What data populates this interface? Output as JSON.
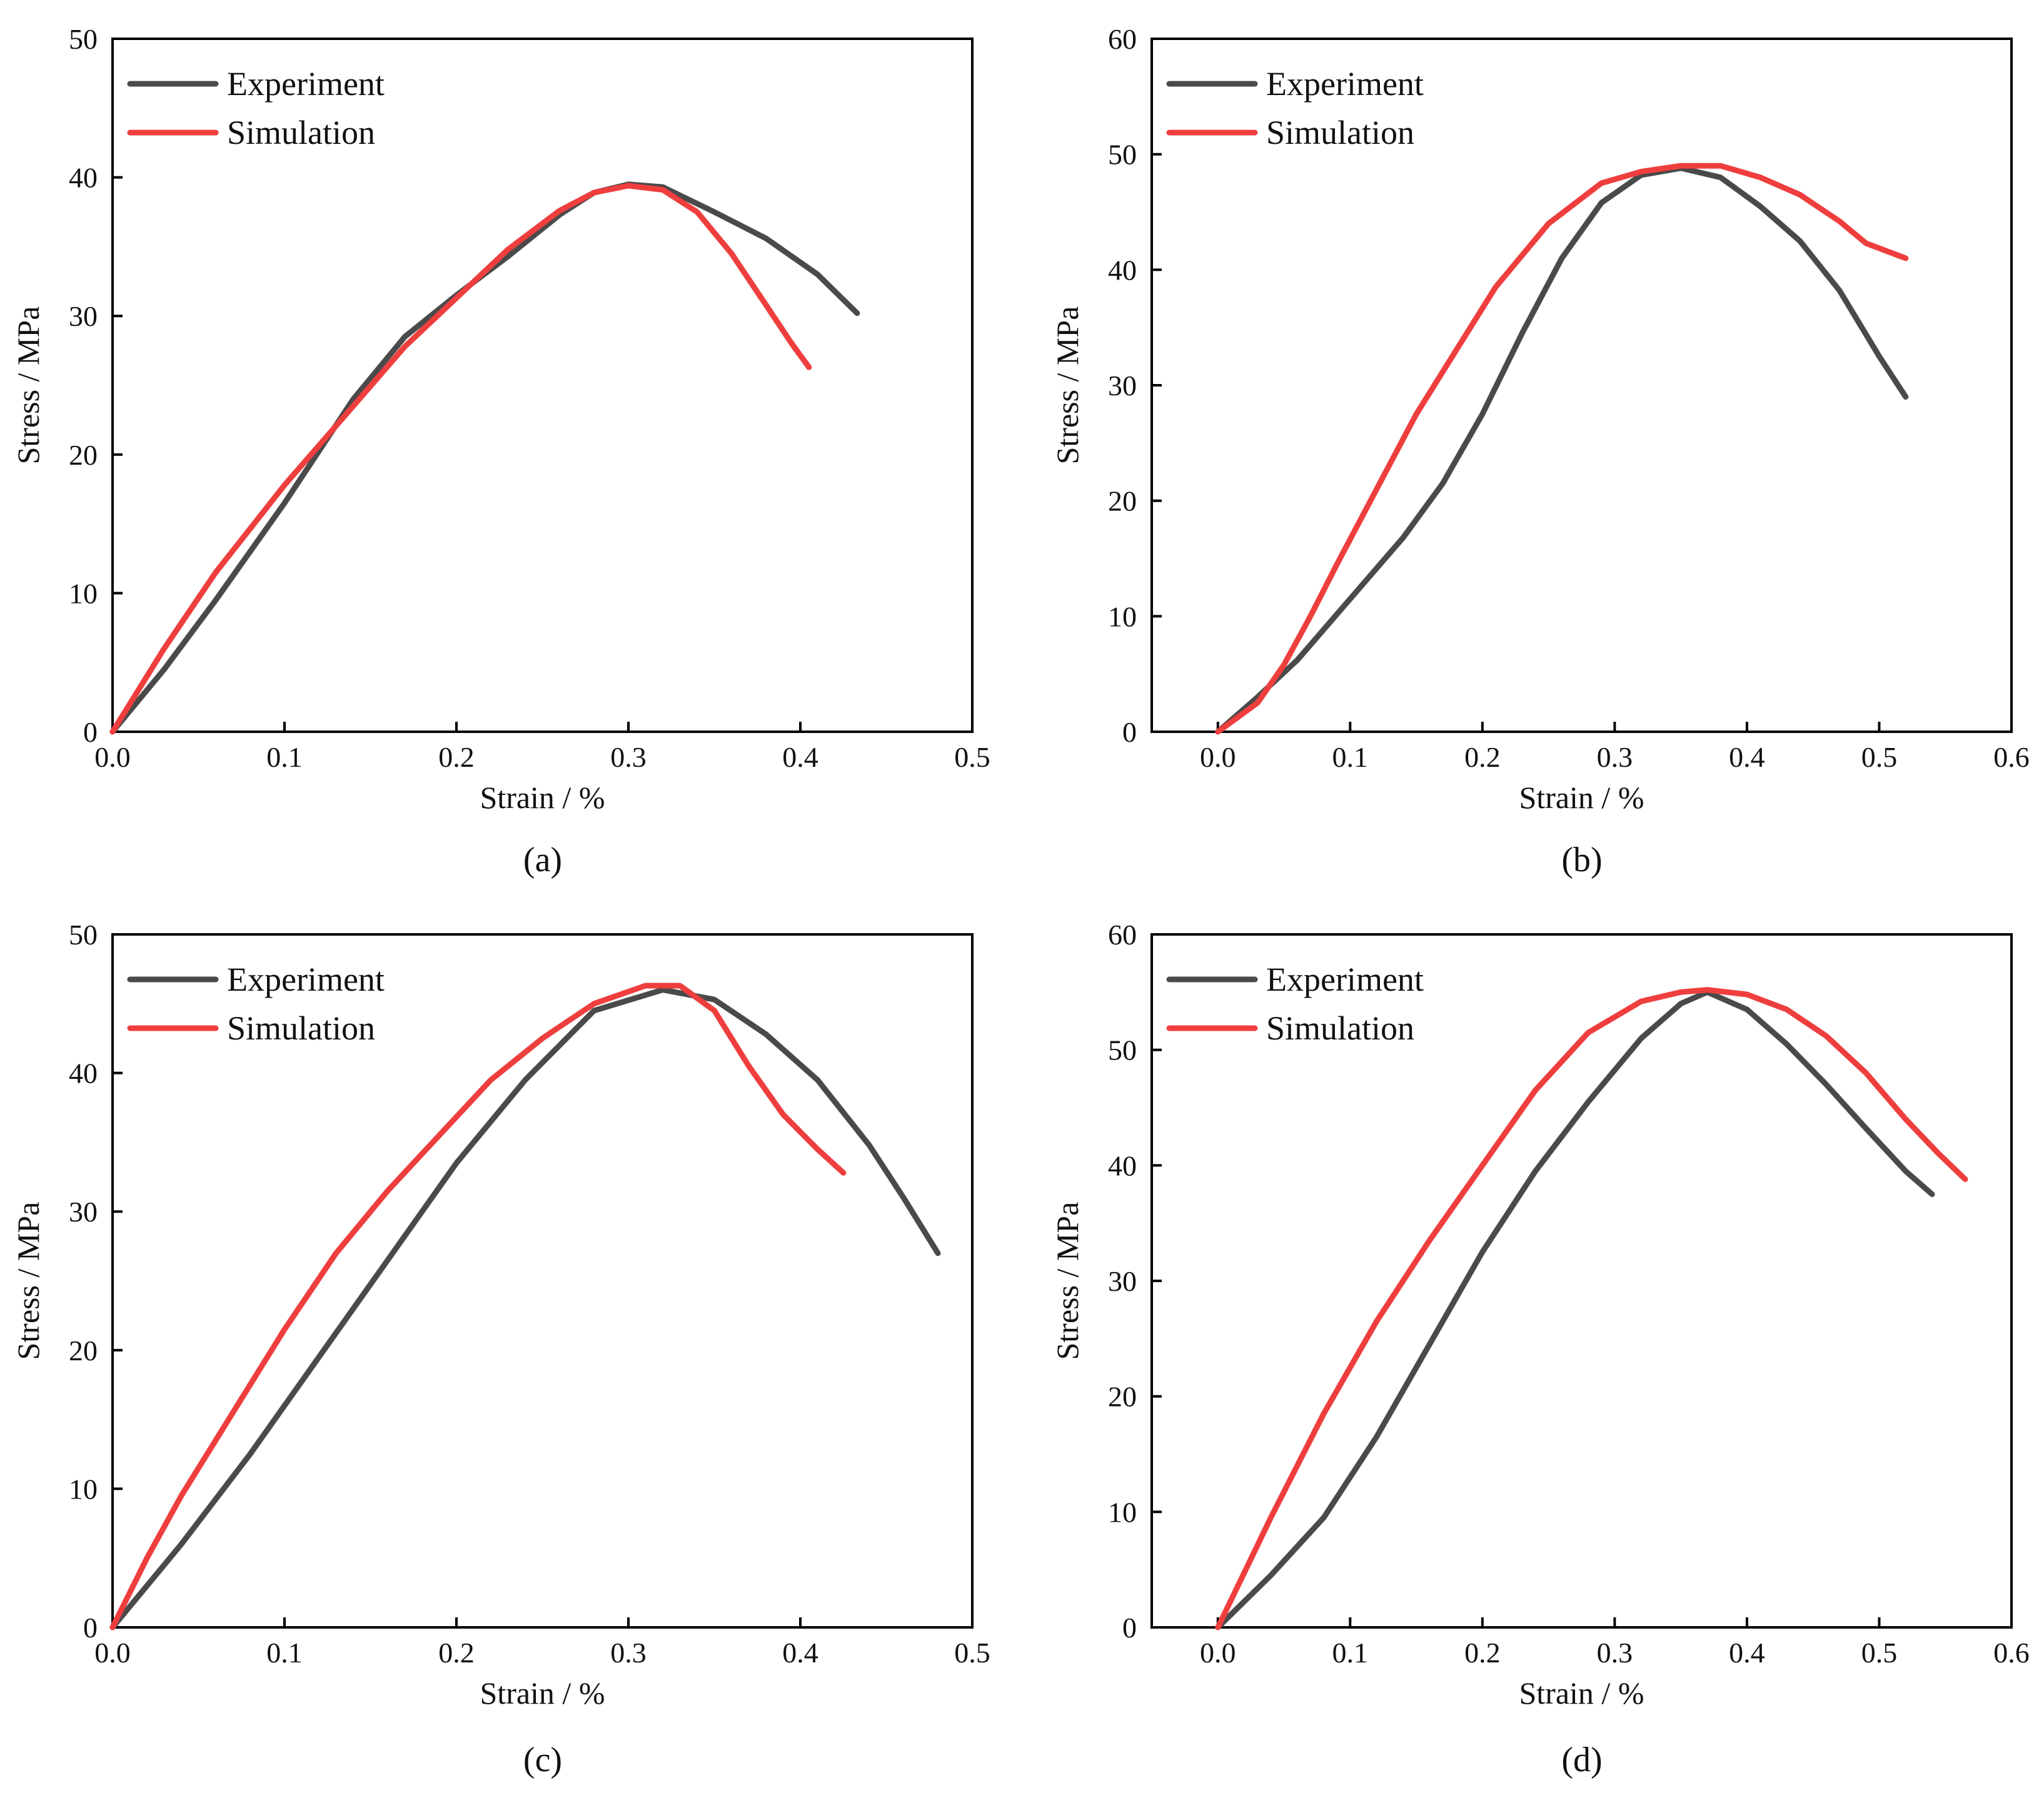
{
  "colors": {
    "experiment": "#4a4a4a",
    "simulation": "#ef3e3e",
    "axis": "#000000"
  },
  "chart_data": [
    {
      "type": "line",
      "panel": "a",
      "caption": "(a)",
      "xlabel": "Strain / %",
      "ylabel": "Stress / MPa",
      "xlim": [
        0,
        0.5
      ],
      "ylim": [
        0,
        50
      ],
      "xticks": [
        0,
        0.1,
        0.2,
        0.3,
        0.4,
        0.5
      ],
      "xtick_labels": [
        "0.0",
        "0.1",
        "0.2",
        "0.3",
        "0.4",
        "0.5"
      ],
      "yticks": [
        0,
        10,
        20,
        30,
        40,
        50
      ],
      "ytick_labels": [
        "0",
        "10",
        "20",
        "30",
        "40",
        "50"
      ],
      "legend": {
        "position": "top-left",
        "entries": [
          "Experiment",
          "Simulation"
        ]
      },
      "series": [
        {
          "name": "Experiment",
          "x": [
            0,
            0.03,
            0.06,
            0.1,
            0.14,
            0.17,
            0.2,
            0.23,
            0.26,
            0.28,
            0.3,
            0.32,
            0.35,
            0.38,
            0.41,
            0.433
          ],
          "y": [
            0,
            4.5,
            9.5,
            16.5,
            24,
            28.5,
            31.5,
            34.3,
            37.3,
            38.9,
            39.5,
            39.3,
            37.5,
            35.6,
            33,
            30.2
          ]
        },
        {
          "name": "Simulation",
          "x": [
            0,
            0.03,
            0.06,
            0.1,
            0.14,
            0.17,
            0.2,
            0.23,
            0.26,
            0.28,
            0.3,
            0.32,
            0.34,
            0.36,
            0.38,
            0.395,
            0.405
          ],
          "y": [
            0,
            6,
            11.5,
            17.8,
            23.5,
            27.8,
            31.3,
            34.8,
            37.6,
            38.9,
            39.4,
            39.1,
            37.5,
            34.5,
            30.8,
            28,
            26.3
          ]
        }
      ]
    },
    {
      "type": "line",
      "panel": "b",
      "caption": "(b)",
      "xlabel": "Strain / %",
      "ylabel": "Stress / MPa",
      "xlim": [
        -0.05,
        0.6
      ],
      "ylim": [
        0,
        60
      ],
      "xticks": [
        0,
        0.1,
        0.2,
        0.3,
        0.4,
        0.5,
        0.6
      ],
      "xtick_labels": [
        "0.0",
        "0.1",
        "0.2",
        "0.3",
        "0.4",
        "0.5",
        "0.6"
      ],
      "yticks": [
        0,
        10,
        20,
        30,
        40,
        50,
        60
      ],
      "ytick_labels": [
        "0",
        "10",
        "20",
        "30",
        "40",
        "50",
        "60"
      ],
      "legend": {
        "position": "top-left",
        "entries": [
          "Experiment",
          "Simulation"
        ]
      },
      "series": [
        {
          "name": "Experiment",
          "x": [
            0,
            0.03,
            0.06,
            0.1,
            0.14,
            0.17,
            0.2,
            0.23,
            0.26,
            0.29,
            0.32,
            0.35,
            0.38,
            0.41,
            0.44,
            0.47,
            0.5,
            0.52
          ],
          "y": [
            0,
            3,
            6.2,
            11.5,
            16.8,
            21.5,
            27.5,
            34.5,
            41,
            45.8,
            48.2,
            48.8,
            48,
            45.5,
            42.5,
            38.2,
            32.5,
            29
          ]
        },
        {
          "name": "Simulation",
          "x": [
            0,
            0.03,
            0.05,
            0.07,
            0.09,
            0.12,
            0.15,
            0.18,
            0.21,
            0.25,
            0.29,
            0.32,
            0.35,
            0.38,
            0.41,
            0.44,
            0.47,
            0.49,
            0.52
          ],
          "y": [
            0,
            2.5,
            5.8,
            10,
            14.5,
            21,
            27.5,
            33,
            38.5,
            44,
            47.5,
            48.5,
            49,
            49,
            48,
            46.5,
            44.2,
            42.3,
            41
          ]
        }
      ]
    },
    {
      "type": "line",
      "panel": "c",
      "caption": "(c)",
      "xlabel": "Strain / %",
      "ylabel": "Stress / MPa",
      "xlim": [
        0,
        0.5
      ],
      "ylim": [
        0,
        50
      ],
      "xticks": [
        0,
        0.1,
        0.2,
        0.3,
        0.4,
        0.5
      ],
      "xtick_labels": [
        "0.0",
        "0.1",
        "0.2",
        "0.3",
        "0.4",
        "0.5"
      ],
      "yticks": [
        0,
        10,
        20,
        30,
        40,
        50
      ],
      "ytick_labels": [
        "0",
        "10",
        "20",
        "30",
        "40",
        "50"
      ],
      "legend": {
        "position": "top-left",
        "entries": [
          "Experiment",
          "Simulation"
        ]
      },
      "series": [
        {
          "name": "Experiment",
          "x": [
            0,
            0.04,
            0.08,
            0.12,
            0.16,
            0.2,
            0.24,
            0.28,
            0.32,
            0.35,
            0.38,
            0.41,
            0.44,
            0.46,
            0.48
          ],
          "y": [
            0,
            6,
            12.5,
            19.5,
            26.5,
            33.5,
            39.5,
            44.5,
            46,
            45.3,
            42.8,
            39.5,
            34.8,
            31,
            27
          ]
        },
        {
          "name": "Simulation",
          "x": [
            0,
            0.02,
            0.04,
            0.07,
            0.1,
            0.13,
            0.16,
            0.19,
            0.22,
            0.25,
            0.28,
            0.31,
            0.33,
            0.35,
            0.37,
            0.39,
            0.41,
            0.425
          ],
          "y": [
            0,
            5,
            9.5,
            15.5,
            21.5,
            27,
            31.5,
            35.5,
            39.5,
            42.5,
            45,
            46.3,
            46.3,
            44.5,
            40.5,
            37,
            34.5,
            32.8
          ]
        }
      ]
    },
    {
      "type": "line",
      "panel": "d",
      "caption": "(d)",
      "xlabel": "Strain / %",
      "ylabel": "Stress / MPa",
      "xlim": [
        -0.05,
        0.6
      ],
      "ylim": [
        0,
        60
      ],
      "xticks": [
        0,
        0.1,
        0.2,
        0.3,
        0.4,
        0.5,
        0.6
      ],
      "xtick_labels": [
        "0.0",
        "0.1",
        "0.2",
        "0.3",
        "0.4",
        "0.5",
        "0.6"
      ],
      "yticks": [
        0,
        10,
        20,
        30,
        40,
        50,
        60
      ],
      "ytick_labels": [
        "0",
        "10",
        "20",
        "30",
        "40",
        "50",
        "60"
      ],
      "legend": {
        "position": "top-left",
        "entries": [
          "Experiment",
          "Simulation"
        ]
      },
      "series": [
        {
          "name": "Experiment",
          "x": [
            0,
            0.04,
            0.08,
            0.12,
            0.16,
            0.2,
            0.24,
            0.28,
            0.32,
            0.35,
            0.37,
            0.4,
            0.43,
            0.46,
            0.49,
            0.52,
            0.54
          ],
          "y": [
            0,
            4.5,
            9.5,
            16.5,
            24.5,
            32.5,
            39.5,
            45.5,
            51,
            54,
            55,
            53.5,
            50.5,
            47,
            43.2,
            39.5,
            37.5
          ]
        },
        {
          "name": "Simulation",
          "x": [
            0,
            0.04,
            0.08,
            0.12,
            0.16,
            0.2,
            0.24,
            0.28,
            0.32,
            0.35,
            0.37,
            0.4,
            0.43,
            0.46,
            0.49,
            0.52,
            0.545,
            0.565
          ],
          "y": [
            0,
            9.5,
            18.5,
            26.5,
            33.5,
            40,
            46.5,
            51.5,
            54.2,
            55,
            55.2,
            54.8,
            53.5,
            51.2,
            48,
            44,
            41,
            38.8
          ]
        }
      ]
    }
  ]
}
